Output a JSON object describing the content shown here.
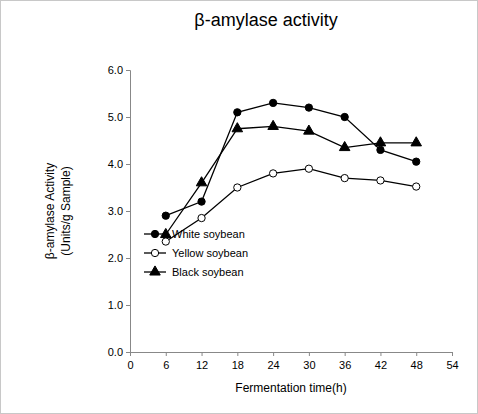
{
  "chart_data": {
    "type": "line",
    "title": "β-amylase  activity",
    "xlabel": "Fermentation time(h)",
    "ylabel": [
      "β-amylase Activity",
      "(Units/g Sample)"
    ],
    "x": [
      6,
      12,
      18,
      24,
      30,
      36,
      42,
      48
    ],
    "series": [
      {
        "name": "White soybean",
        "color": "#000000",
        "marker": "circle",
        "line_style": "solid",
        "values": [
          2.9,
          3.2,
          5.1,
          5.3,
          5.2,
          5.0,
          4.3,
          4.05
        ]
      },
      {
        "name": "Yellow soybean",
        "color": "#000000",
        "marker": "circle-open",
        "line_style": "solid",
        "values": [
          2.35,
          2.85,
          3.5,
          3.8,
          3.9,
          3.7,
          3.65,
          3.52
        ]
      },
      {
        "name": "Black soybean",
        "color": "#000000",
        "marker": "triangle",
        "line_style": "solid",
        "values": [
          2.5,
          3.6,
          4.75,
          4.8,
          4.7,
          4.35,
          4.45,
          4.45
        ]
      }
    ],
    "xlim": [
      0,
      54
    ],
    "xticks": [
      0,
      6,
      12,
      18,
      24,
      30,
      36,
      42,
      48,
      54
    ],
    "ylim": [
      0,
      6
    ],
    "yticks": [
      {
        "value": 0,
        "label": "0.0"
      },
      {
        "value": 1,
        "label": "1.0"
      },
      {
        "value": 2,
        "label": "2.0"
      },
      {
        "value": 3,
        "label": "3.0"
      },
      {
        "value": 4,
        "label": "4.0"
      },
      {
        "value": 5,
        "label": "5.0"
      },
      {
        "value": 6,
        "label": "6.0"
      }
    ],
    "grid": false,
    "legend": "lower left"
  }
}
